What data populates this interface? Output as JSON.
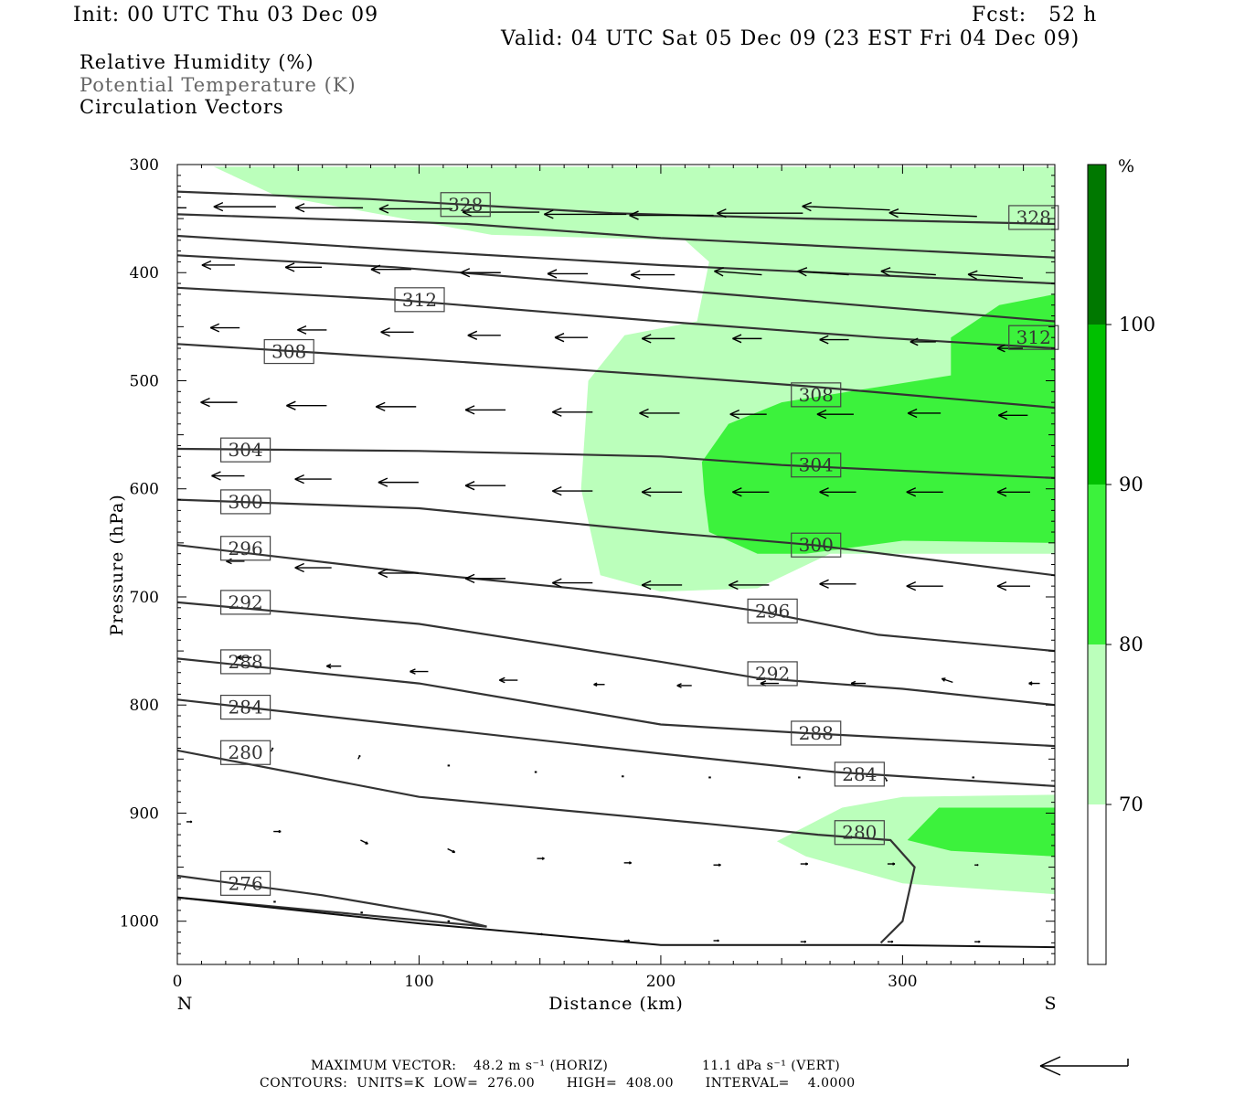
{
  "header": {
    "init": "Init: 00 UTC Thu 03 Dec 09",
    "fcst": "Fcst:   52 h",
    "valid": "Valid: 04 UTC Sat 05 Dec 09 (23 EST Fri 04 Dec 09)"
  },
  "legend": {
    "rh": "Relative Humidity (%)",
    "theta": "Potential Temperature (K)",
    "vectors": "Circulation Vectors"
  },
  "footer": {
    "maxvec_label": "MAXIMUM VECTOR:",
    "maxvec_horiz": "48.2 m s⁻¹ (HORIZ)",
    "maxvec_vert": "11.1 dPa s⁻¹ (VERT)",
    "contours": "CONTOURS:  UNITS=K  LOW=  276.00       HIGH=  408.00       INTERVAL=    4.0000"
  },
  "colors": {
    "rh_70_80": "#bbffbb",
    "rh_80_90": "#3cf23c",
    "rh_90_100": "#00c000",
    "rh_100_plus": "#007800",
    "contour": "#333333"
  },
  "chart_data": {
    "type": "cross-section",
    "xlabel": "Distance (km)",
    "ylabel": "Pressure (hPa)",
    "xlim": [
      0,
      363
    ],
    "ylim": [
      300,
      1040
    ],
    "y_inverted": true,
    "xticks": [
      0,
      100,
      200,
      300
    ],
    "yticks": [
      300,
      400,
      500,
      600,
      700,
      800,
      900,
      1000
    ],
    "x_end_labels": {
      "left": "N",
      "right": "S"
    },
    "colorbar": {
      "unit": "%",
      "levels": [
        70,
        80,
        90,
        100
      ]
    },
    "rh_fill": [
      {
        "range": "70-80",
        "regions": [
          [
            [
              15,
              302
            ],
            [
              363,
              302
            ],
            [
              363,
              660
            ],
            [
              270,
              660
            ],
            [
              240,
              692
            ],
            [
              200,
              695
            ],
            [
              175,
              680
            ],
            [
              167,
              600
            ],
            [
              170,
              500
            ],
            [
              185,
              458
            ],
            [
              215,
              445
            ],
            [
              220,
              390
            ],
            [
              210,
              370
            ],
            [
              130,
              365
            ],
            [
              40,
              328
            ]
          ],
          [
            [
              248,
              926
            ],
            [
              275,
              895
            ],
            [
              300,
              885
            ],
            [
              363,
              883
            ],
            [
              363,
              975
            ],
            [
              300,
              965
            ],
            [
              260,
              940
            ]
          ]
        ]
      },
      {
        "range": "80-90",
        "regions": [
          [
            [
              218,
              605
            ],
            [
              217,
              575
            ],
            [
              228,
              540
            ],
            [
              250,
              520
            ],
            [
              320,
              495
            ],
            [
              320,
              460
            ],
            [
              340,
              430
            ],
            [
              363,
              420
            ],
            [
              363,
              650
            ],
            [
              300,
              648
            ],
            [
              260,
              660
            ],
            [
              240,
              660
            ],
            [
              220,
              640
            ]
          ],
          [
            [
              302,
              925
            ],
            [
              315,
              895
            ],
            [
              363,
              895
            ],
            [
              363,
              940
            ],
            [
              320,
              935
            ]
          ]
        ]
      }
    ],
    "theta_contours": [
      {
        "value": 328,
        "points": [
          [
            0,
            325
          ],
          [
            80,
            332
          ],
          [
            180,
            345
          ],
          [
            260,
            350
          ],
          [
            363,
            355
          ]
        ],
        "labels": [
          [
            109,
            337
          ],
          [
            344,
            349
          ]
        ]
      },
      {
        "value": 324,
        "points": [
          [
            0,
            346
          ],
          [
            120,
            355
          ],
          [
            200,
            368
          ],
          [
            363,
            386
          ]
        ],
        "labels": []
      },
      {
        "value": 320,
        "points": [
          [
            0,
            366
          ],
          [
            100,
            380
          ],
          [
            200,
            393
          ],
          [
            363,
            410
          ]
        ],
        "labels": []
      },
      {
        "value": 316,
        "points": [
          [
            0,
            384
          ],
          [
            90,
            395
          ],
          [
            200,
            415
          ],
          [
            363,
            445
          ]
        ],
        "labels": []
      },
      {
        "value": 312,
        "points": [
          [
            0,
            414
          ],
          [
            90,
            425
          ],
          [
            200,
            445
          ],
          [
            290,
            460
          ],
          [
            363,
            470
          ]
        ],
        "labels": [
          [
            90,
            425
          ],
          [
            344,
            460
          ]
        ]
      },
      {
        "value": 308,
        "points": [
          [
            0,
            466
          ],
          [
            100,
            480
          ],
          [
            200,
            495
          ],
          [
            260,
            505
          ],
          [
            363,
            525
          ]
        ],
        "labels": [
          [
            36,
            473
          ],
          [
            254,
            513
          ]
        ]
      },
      {
        "value": 304,
        "points": [
          [
            0,
            563
          ],
          [
            100,
            565
          ],
          [
            200,
            570
          ],
          [
            250,
            578
          ],
          [
            363,
            590
          ]
        ],
        "labels": [
          [
            18,
            564
          ],
          [
            254,
            578
          ]
        ]
      },
      {
        "value": 300,
        "points": [
          [
            0,
            610
          ],
          [
            100,
            618
          ],
          [
            200,
            640
          ],
          [
            263,
            652
          ],
          [
            363,
            680
          ]
        ],
        "labels": [
          [
            18,
            612
          ],
          [
            254,
            652
          ]
        ]
      },
      {
        "value": 296,
        "points": [
          [
            0,
            652
          ],
          [
            100,
            678
          ],
          [
            200,
            700
          ],
          [
            240,
            713
          ],
          [
            290,
            735
          ],
          [
            363,
            750
          ]
        ],
        "labels": [
          [
            18,
            655
          ],
          [
            236,
            713
          ]
        ]
      },
      {
        "value": 292,
        "points": [
          [
            0,
            705
          ],
          [
            100,
            725
          ],
          [
            200,
            760
          ],
          [
            240,
            775
          ],
          [
            300,
            785
          ],
          [
            363,
            800
          ]
        ],
        "labels": [
          [
            18,
            705
          ],
          [
            236,
            771
          ]
        ]
      },
      {
        "value": 288,
        "points": [
          [
            0,
            757
          ],
          [
            100,
            780
          ],
          [
            200,
            818
          ],
          [
            260,
            826
          ],
          [
            363,
            838
          ]
        ],
        "labels": [
          [
            18,
            760
          ],
          [
            254,
            826
          ]
        ]
      },
      {
        "value": 284,
        "points": [
          [
            0,
            795
          ],
          [
            100,
            820
          ],
          [
            200,
            845
          ],
          [
            272,
            862
          ],
          [
            363,
            875
          ]
        ],
        "labels": [
          [
            18,
            802
          ],
          [
            272,
            864
          ]
        ]
      },
      {
        "value": 280,
        "points": [
          [
            0,
            842
          ],
          [
            100,
            885
          ],
          [
            220,
            910
          ],
          [
            265,
            920
          ],
          [
            295,
            925
          ],
          [
            305,
            950
          ],
          [
            300,
            1000
          ],
          [
            291,
            1020
          ]
        ],
        "labels": [
          [
            18,
            844
          ],
          [
            272,
            918
          ]
        ]
      },
      {
        "value": 276,
        "points": [
          [
            0,
            958
          ],
          [
            60,
            976
          ],
          [
            110,
            995
          ],
          [
            128,
            1005
          ],
          [
            0,
            978
          ]
        ],
        "labels": [
          [
            18,
            965
          ]
        ]
      }
    ],
    "surface": [
      [
        0,
        978
      ],
      [
        100,
        1002
      ],
      [
        200,
        1022
      ],
      [
        290,
        1022
      ],
      [
        363,
        1024
      ]
    ],
    "vectors": [
      {
        "x": 0,
        "p": 340,
        "u": -32,
        "w": 0
      },
      {
        "x": 37,
        "p": 339,
        "u": -34,
        "w": 0
      },
      {
        "x": 73,
        "p": 340,
        "u": -37,
        "w": 0
      },
      {
        "x": 110,
        "p": 341,
        "u": -40,
        "w": 0
      },
      {
        "x": 146,
        "p": 344,
        "u": -42,
        "w": 0
      },
      {
        "x": 182,
        "p": 346,
        "u": -45,
        "w": 0
      },
      {
        "x": 218,
        "p": 347,
        "u": -46,
        "w": 0
      },
      {
        "x": 255,
        "p": 345,
        "u": -47,
        "w": 0
      },
      {
        "x": 291,
        "p": 342,
        "u": -48,
        "w": 2
      },
      {
        "x": 327,
        "p": 348,
        "u": -48,
        "w": 2
      },
      {
        "x": 20,
        "p": 393,
        "u": -18,
        "w": 0
      },
      {
        "x": 56,
        "p": 395,
        "u": -20,
        "w": 0
      },
      {
        "x": 93,
        "p": 397,
        "u": -22,
        "w": 0
      },
      {
        "x": 130,
        "p": 400,
        "u": -22,
        "w": 0
      },
      {
        "x": 166,
        "p": 401,
        "u": -22,
        "w": 0
      },
      {
        "x": 202,
        "p": 402,
        "u": -24,
        "w": 0
      },
      {
        "x": 238,
        "p": 402,
        "u": -26,
        "w": 2
      },
      {
        "x": 274,
        "p": 402,
        "u": -28,
        "w": 2
      },
      {
        "x": 310,
        "p": 402,
        "u": -30,
        "w": 2
      },
      {
        "x": 346,
        "p": 405,
        "u": -30,
        "w": 2
      },
      {
        "x": 22,
        "p": 451,
        "u": -16,
        "w": 0
      },
      {
        "x": 58,
        "p": 453,
        "u": -16,
        "w": 0
      },
      {
        "x": 94,
        "p": 455,
        "u": -18,
        "w": 0
      },
      {
        "x": 130,
        "p": 458,
        "u": -18,
        "w": 0
      },
      {
        "x": 166,
        "p": 460,
        "u": -18,
        "w": 0
      },
      {
        "x": 202,
        "p": 461,
        "u": -18,
        "w": 0
      },
      {
        "x": 238,
        "p": 461,
        "u": -16,
        "w": 0
      },
      {
        "x": 274,
        "p": 462,
        "u": -16,
        "w": 0
      },
      {
        "x": 310,
        "p": 464,
        "u": -14,
        "w": 0
      },
      {
        "x": 346,
        "p": 470,
        "u": -14,
        "w": 0
      },
      {
        "x": 21,
        "p": 520,
        "u": -20,
        "w": 0
      },
      {
        "x": 58,
        "p": 523,
        "u": -22,
        "w": 0
      },
      {
        "x": 95,
        "p": 524,
        "u": -22,
        "w": 0
      },
      {
        "x": 132,
        "p": 527,
        "u": -22,
        "w": 0
      },
      {
        "x": 168,
        "p": 529,
        "u": -22,
        "w": 0
      },
      {
        "x": 204,
        "p": 530,
        "u": -22,
        "w": 0
      },
      {
        "x": 240,
        "p": 531,
        "u": -20,
        "w": 0
      },
      {
        "x": 276,
        "p": 531,
        "u": -20,
        "w": 0
      },
      {
        "x": 312,
        "p": 530,
        "u": -18,
        "w": 0
      },
      {
        "x": 348,
        "p": 532,
        "u": -16,
        "w": 0
      },
      {
        "x": 24,
        "p": 588,
        "u": -18,
        "w": 0
      },
      {
        "x": 60,
        "p": 591,
        "u": -20,
        "w": 0
      },
      {
        "x": 96,
        "p": 594,
        "u": -22,
        "w": 0
      },
      {
        "x": 132,
        "p": 597,
        "u": -22,
        "w": 0
      },
      {
        "x": 168,
        "p": 602,
        "u": -22,
        "w": 0
      },
      {
        "x": 205,
        "p": 603,
        "u": -22,
        "w": 0
      },
      {
        "x": 241,
        "p": 603,
        "u": -20,
        "w": 0
      },
      {
        "x": 277,
        "p": 603,
        "u": -20,
        "w": 0
      },
      {
        "x": 313,
        "p": 603,
        "u": -20,
        "w": 0
      },
      {
        "x": 349,
        "p": 603,
        "u": -18,
        "w": 0
      },
      {
        "x": 24,
        "p": 667,
        "u": -10,
        "w": 0
      },
      {
        "x": 60,
        "p": 673,
        "u": -20,
        "w": 0
      },
      {
        "x": 96,
        "p": 678,
        "u": -22,
        "w": 0
      },
      {
        "x": 132,
        "p": 683,
        "u": -22,
        "w": 0
      },
      {
        "x": 168,
        "p": 687,
        "u": -22,
        "w": 0
      },
      {
        "x": 205,
        "p": 689,
        "u": -22,
        "w": 0
      },
      {
        "x": 241,
        "p": 689,
        "u": -22,
        "w": 0
      },
      {
        "x": 277,
        "p": 688,
        "u": -20,
        "w": 0
      },
      {
        "x": 313,
        "p": 690,
        "u": -20,
        "w": 0
      },
      {
        "x": 349,
        "p": 690,
        "u": -18,
        "w": 0
      },
      {
        "x": 27,
        "p": 756,
        "u": -8,
        "w": 0
      },
      {
        "x": 64,
        "p": 764,
        "u": -8,
        "w": 0
      },
      {
        "x": 100,
        "p": 769,
        "u": -10,
        "w": 0
      },
      {
        "x": 137,
        "p": 777,
        "u": -10,
        "w": 0
      },
      {
        "x": 173,
        "p": 781,
        "u": -6,
        "w": 0
      },
      {
        "x": 209,
        "p": 782,
        "u": -8,
        "w": 0
      },
      {
        "x": 245,
        "p": 780,
        "u": -10,
        "w": 0
      },
      {
        "x": 281,
        "p": 780,
        "u": -8,
        "w": 0
      },
      {
        "x": 317,
        "p": 779,
        "u": -6,
        "w": 2
      },
      {
        "x": 353,
        "p": 780,
        "u": -6,
        "w": 0
      },
      {
        "x": 35,
        "p": 843,
        "u": 1,
        "w": 2
      },
      {
        "x": 71,
        "p": 850,
        "u": 1,
        "w": 2
      },
      {
        "x": 108,
        "p": 856,
        "u": 1,
        "w": 0
      },
      {
        "x": 144,
        "p": 862,
        "u": 1,
        "w": 0
      },
      {
        "x": 180,
        "p": 866,
        "u": 1,
        "w": 0
      },
      {
        "x": 216,
        "p": 867,
        "u": 1,
        "w": 0
      },
      {
        "x": 253,
        "p": 867,
        "u": 1,
        "w": 0
      },
      {
        "x": 289,
        "p": 867,
        "u": 1,
        "w": -2
      },
      {
        "x": 325,
        "p": 867,
        "u": 1,
        "w": 0
      },
      {
        "x": 361,
        "p": 867,
        "u": 1,
        "w": 0
      },
      {
        "x": 0,
        "p": 908,
        "u": 3,
        "w": 0
      },
      {
        "x": 36,
        "p": 917,
        "u": 4,
        "w": 0
      },
      {
        "x": 72,
        "p": 925,
        "u": 4,
        "w": -2
      },
      {
        "x": 108,
        "p": 933,
        "u": 4,
        "w": -2
      },
      {
        "x": 145,
        "p": 942,
        "u": 4,
        "w": 0
      },
      {
        "x": 181,
        "p": 946,
        "u": 4,
        "w": 0
      },
      {
        "x": 218,
        "p": 948,
        "u": 4,
        "w": 0
      },
      {
        "x": 254,
        "p": 947,
        "u": 4,
        "w": 0
      },
      {
        "x": 290,
        "p": 947,
        "u": 4,
        "w": 0
      },
      {
        "x": 326,
        "p": 948,
        "u": 2,
        "w": 0
      },
      {
        "x": 36,
        "p": 982,
        "u": 1,
        "w": 0
      },
      {
        "x": 72,
        "p": 992,
        "u": 1,
        "w": 0
      },
      {
        "x": 108,
        "p": 1000,
        "u": 1,
        "w": 0
      },
      {
        "x": 145,
        "p": 1012,
        "u": 3,
        "w": 0
      },
      {
        "x": 181,
        "p": 1018,
        "u": 3,
        "w": 0
      },
      {
        "x": 218,
        "p": 1018,
        "u": 3,
        "w": 0
      },
      {
        "x": 254,
        "p": 1019,
        "u": 3,
        "w": 0
      },
      {
        "x": 290,
        "p": 1019,
        "u": 3,
        "w": 0
      },
      {
        "x": 326,
        "p": 1019,
        "u": 3,
        "w": 0
      }
    ]
  }
}
